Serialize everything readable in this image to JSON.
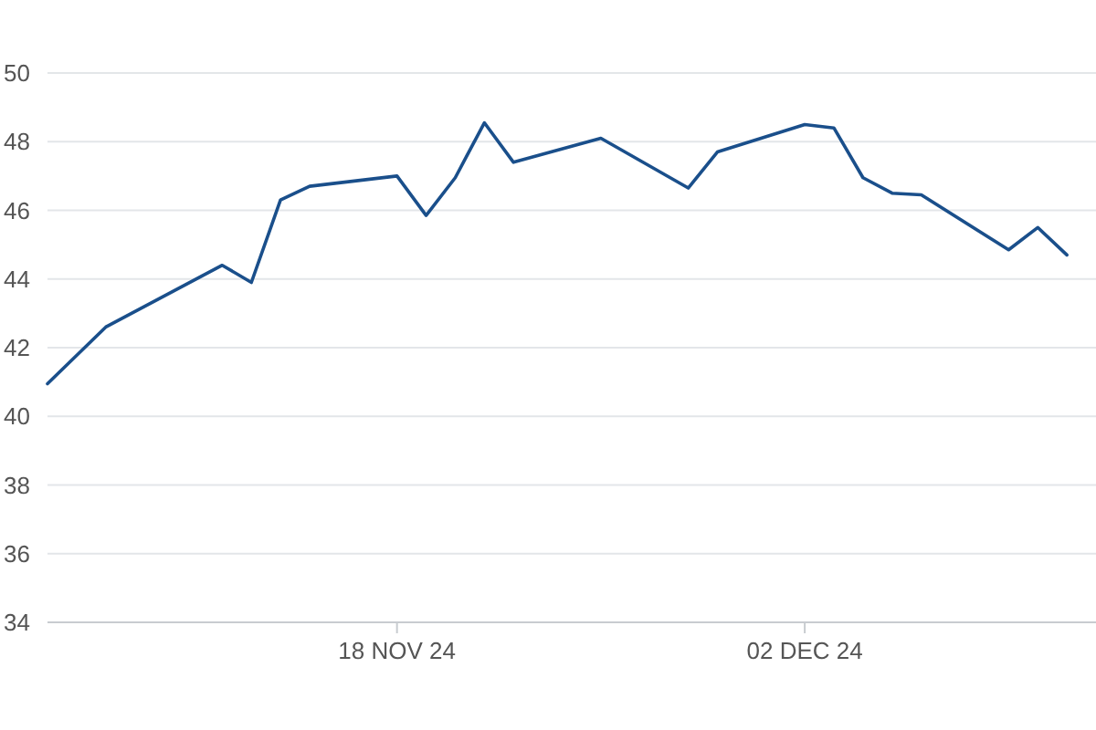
{
  "chart_data": {
    "type": "line",
    "x": [
      "2024-11-06",
      "2024-11-08",
      "2024-11-12",
      "2024-11-13",
      "2024-11-14",
      "2024-11-15",
      "2024-11-18",
      "2024-11-19",
      "2024-11-20",
      "2024-11-21",
      "2024-11-22",
      "2024-11-25",
      "2024-11-28",
      "2024-11-29",
      "2024-12-02",
      "2024-12-03",
      "2024-12-04",
      "2024-12-05",
      "2024-12-06",
      "2024-12-09",
      "2024-12-10",
      "2024-12-11"
    ],
    "series": [
      {
        "color": "#1a4f8b",
        "values": [
          40.95,
          42.6,
          44.4,
          43.9,
          46.3,
          46.7,
          47.0,
          45.85,
          46.95,
          48.55,
          47.4,
          48.1,
          46.65,
          47.7,
          48.5,
          48.4,
          46.95,
          46.5,
          46.45,
          44.85,
          45.5,
          44.7
        ]
      }
    ],
    "xlim": [
      "2024-11-06",
      "2024-12-12"
    ],
    "xticks": [
      {
        "value": "2024-11-18",
        "label": "18 NOV 24"
      },
      {
        "value": "2024-12-02",
        "label": "02 DEC 24"
      }
    ],
    "ylim": [
      34,
      50
    ],
    "yticks": [
      34,
      36,
      38,
      40,
      42,
      44,
      46,
      48,
      50
    ],
    "grid": "y",
    "marker": "none",
    "line_style": "solid"
  }
}
